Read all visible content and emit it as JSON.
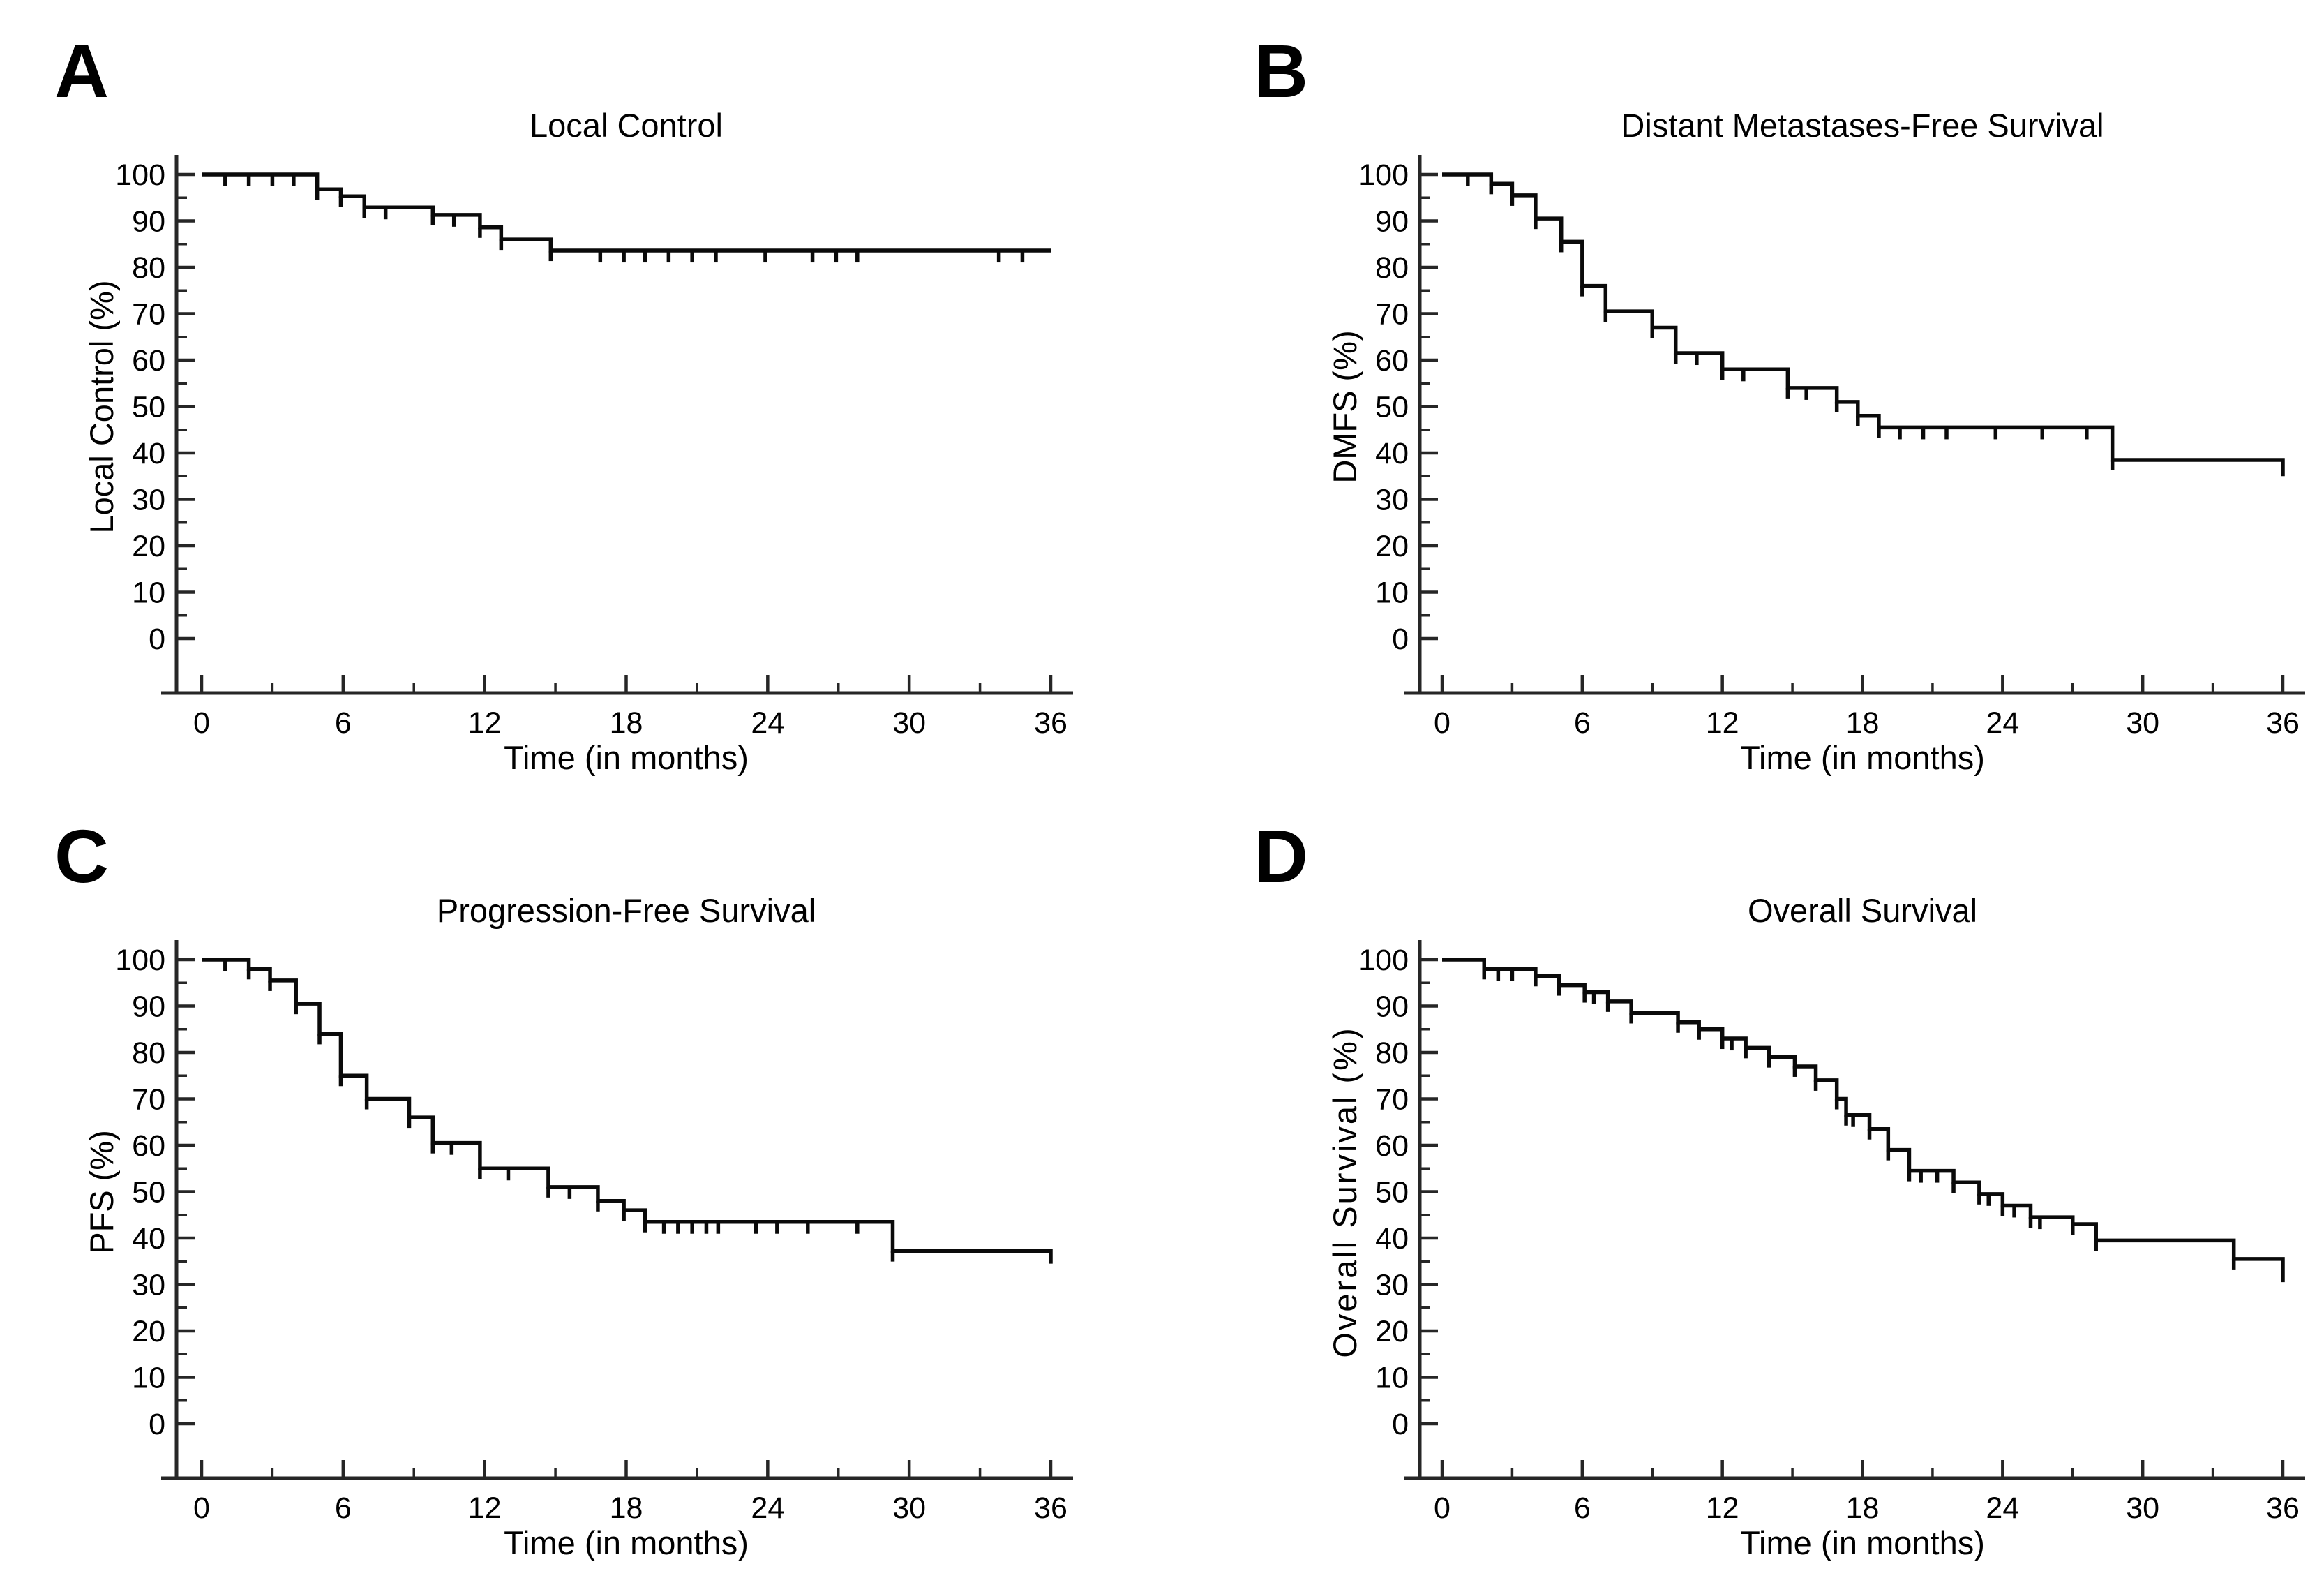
{
  "colors": {
    "curve": "#0a0a0a",
    "axis": "#262626",
    "text": "#000000",
    "background": "#ffffff"
  },
  "chart_data": [
    {
      "type": "km_step",
      "panel_label": "A",
      "title": "Local Control",
      "ylabel": "Local Control (%)",
      "xlabel": "Time (in months)",
      "xlim": [
        0,
        36
      ],
      "ylim": [
        0,
        100
      ],
      "xticks": [
        0,
        6,
        12,
        18,
        24,
        30,
        36
      ],
      "xticks_minor": [
        3,
        9,
        15,
        21,
        27,
        33
      ],
      "yticks": [
        0,
        10,
        20,
        30,
        40,
        50,
        60,
        70,
        80,
        90,
        100
      ],
      "yticks_minor": [
        5,
        15,
        25,
        35,
        45,
        55,
        65,
        75,
        85,
        95
      ],
      "grid": false,
      "legend": null,
      "start": [
        0,
        100
      ],
      "steps": [
        [
          4.9,
          96.8
        ],
        [
          5.9,
          95.3
        ],
        [
          6.9,
          92.9
        ],
        [
          9.8,
          91.3
        ],
        [
          11.8,
          88.6
        ],
        [
          12.7,
          86.0
        ],
        [
          14.8,
          83.6
        ]
      ],
      "censor_marks": [
        [
          1.0,
          100
        ],
        [
          2.0,
          100
        ],
        [
          3.0,
          100
        ],
        [
          3.9,
          100
        ],
        [
          7.8,
          92.9
        ],
        [
          10.7,
          91.3
        ],
        [
          16.9,
          83.6
        ],
        [
          17.9,
          83.6
        ],
        [
          18.8,
          83.6
        ],
        [
          19.8,
          83.6
        ],
        [
          20.8,
          83.6
        ],
        [
          21.8,
          83.6
        ],
        [
          23.9,
          83.6
        ],
        [
          25.9,
          83.6
        ],
        [
          26.9,
          83.6
        ],
        [
          27.8,
          83.6
        ],
        [
          33.8,
          83.6
        ],
        [
          34.8,
          83.6
        ]
      ],
      "curve_end_x": 36,
      "terminal_drop_to": null
    },
    {
      "type": "km_step",
      "panel_label": "B",
      "title": "Distant Metastases-Free Survival",
      "ylabel": "DMFS (%)",
      "xlabel": "Time (in months)",
      "xlim": [
        0,
        36
      ],
      "ylim": [
        0,
        100
      ],
      "xticks": [
        0,
        6,
        12,
        18,
        24,
        30,
        36
      ],
      "xticks_minor": [
        3,
        9,
        15,
        21,
        27,
        33
      ],
      "yticks": [
        0,
        10,
        20,
        30,
        40,
        50,
        60,
        70,
        80,
        90,
        100
      ],
      "yticks_minor": [
        5,
        15,
        25,
        35,
        45,
        55,
        65,
        75,
        85,
        95
      ],
      "grid": false,
      "legend": null,
      "start": [
        0,
        100
      ],
      "steps": [
        [
          2.1,
          98.0
        ],
        [
          3.0,
          95.5
        ],
        [
          4.0,
          90.5
        ],
        [
          5.1,
          85.5
        ],
        [
          6.0,
          76.0
        ],
        [
          7.0,
          70.5
        ],
        [
          9.0,
          67.0
        ],
        [
          10.0,
          61.5
        ],
        [
          12.0,
          58.0
        ],
        [
          14.8,
          54.0
        ],
        [
          16.9,
          51.0
        ],
        [
          17.8,
          48.0
        ],
        [
          18.7,
          45.5
        ],
        [
          28.7,
          38.5
        ]
      ],
      "censor_marks": [
        [
          1.1,
          100
        ],
        [
          10.9,
          61.5
        ],
        [
          12.9,
          58.0
        ],
        [
          15.6,
          54.0
        ],
        [
          19.6,
          45.5
        ],
        [
          20.6,
          45.5
        ],
        [
          21.6,
          45.5
        ],
        [
          23.7,
          45.5
        ],
        [
          25.7,
          45.5
        ],
        [
          27.6,
          45.5
        ]
      ],
      "curve_end_x": 36,
      "terminal_drop_to": 35.0
    },
    {
      "type": "km_step",
      "panel_label": "C",
      "title": "Progression-Free Survival",
      "ylabel": "PFS (%)",
      "xlabel": "Time (in months)",
      "xlim": [
        0,
        36
      ],
      "ylim": [
        0,
        100
      ],
      "xticks": [
        0,
        6,
        12,
        18,
        24,
        30,
        36
      ],
      "xticks_minor": [
        3,
        9,
        15,
        21,
        27,
        33
      ],
      "yticks": [
        0,
        10,
        20,
        30,
        40,
        50,
        60,
        70,
        80,
        90,
        100
      ],
      "yticks_minor": [
        5,
        15,
        25,
        35,
        45,
        55,
        65,
        75,
        85,
        95
      ],
      "grid": false,
      "legend": null,
      "start": [
        0,
        100
      ],
      "steps": [
        [
          2.0,
          98.0
        ],
        [
          2.9,
          95.5
        ],
        [
          4.0,
          90.5
        ],
        [
          5.0,
          84.0
        ],
        [
          5.9,
          75.0
        ],
        [
          7.0,
          70.0
        ],
        [
          8.8,
          66.0
        ],
        [
          9.8,
          60.5
        ],
        [
          11.8,
          55.0
        ],
        [
          14.7,
          51.0
        ],
        [
          16.8,
          48.0
        ],
        [
          17.9,
          46.0
        ],
        [
          18.8,
          43.5
        ],
        [
          29.3,
          37.2
        ]
      ],
      "censor_marks": [
        [
          1.0,
          100
        ],
        [
          10.6,
          60.5
        ],
        [
          13.0,
          55.0
        ],
        [
          15.6,
          51.0
        ],
        [
          19.6,
          43.5
        ],
        [
          20.2,
          43.5
        ],
        [
          20.8,
          43.5
        ],
        [
          21.4,
          43.5
        ],
        [
          21.9,
          43.5
        ],
        [
          23.5,
          43.5
        ],
        [
          24.4,
          43.5
        ],
        [
          25.7,
          43.5
        ],
        [
          27.8,
          43.5
        ]
      ],
      "curve_end_x": 36,
      "terminal_drop_to": 34.5
    },
    {
      "type": "km_step",
      "panel_label": "D",
      "title": "Overall Survival",
      "ylabel": "Overall Survival (%)",
      "xlabel": "Time (in months)",
      "xlim": [
        0,
        36
      ],
      "ylim": [
        0,
        100
      ],
      "xticks": [
        0,
        6,
        12,
        18,
        24,
        30,
        36
      ],
      "xticks_minor": [
        3,
        9,
        15,
        21,
        27,
        33
      ],
      "yticks": [
        0,
        10,
        20,
        30,
        40,
        50,
        60,
        70,
        80,
        90,
        100
      ],
      "yticks_minor": [
        5,
        15,
        25,
        35,
        45,
        55,
        65,
        75,
        85,
        95
      ],
      "grid": false,
      "legend": null,
      "start": [
        0,
        100
      ],
      "steps": [
        [
          1.8,
          98.0
        ],
        [
          4.0,
          96.5
        ],
        [
          5.0,
          94.5
        ],
        [
          6.1,
          93.0
        ],
        [
          7.1,
          91.0
        ],
        [
          8.1,
          88.5
        ],
        [
          10.1,
          86.5
        ],
        [
          11.0,
          85.0
        ],
        [
          12.0,
          83.0
        ],
        [
          13.0,
          81.0
        ],
        [
          14.0,
          79.0
        ],
        [
          15.1,
          77.0
        ],
        [
          16.0,
          74.0
        ],
        [
          16.9,
          70.0
        ],
        [
          17.3,
          66.5
        ],
        [
          18.3,
          63.5
        ],
        [
          19.1,
          59.0
        ],
        [
          20.0,
          54.5
        ],
        [
          21.9,
          52.0
        ],
        [
          23.0,
          49.5
        ],
        [
          24.0,
          47.0
        ],
        [
          25.2,
          44.5
        ],
        [
          27.0,
          43.0
        ],
        [
          28.0,
          39.5
        ],
        [
          33.9,
          35.5
        ]
      ],
      "censor_marks": [
        [
          2.4,
          98.0
        ],
        [
          3.0,
          98.0
        ],
        [
          6.5,
          93.0
        ],
        [
          12.4,
          83.0
        ],
        [
          17.6,
          66.5
        ],
        [
          20.5,
          54.5
        ],
        [
          21.2,
          54.5
        ],
        [
          23.4,
          49.5
        ],
        [
          24.5,
          47.0
        ],
        [
          25.6,
          44.5
        ]
      ],
      "curve_end_x": 36,
      "terminal_drop_to": 30.5
    }
  ]
}
